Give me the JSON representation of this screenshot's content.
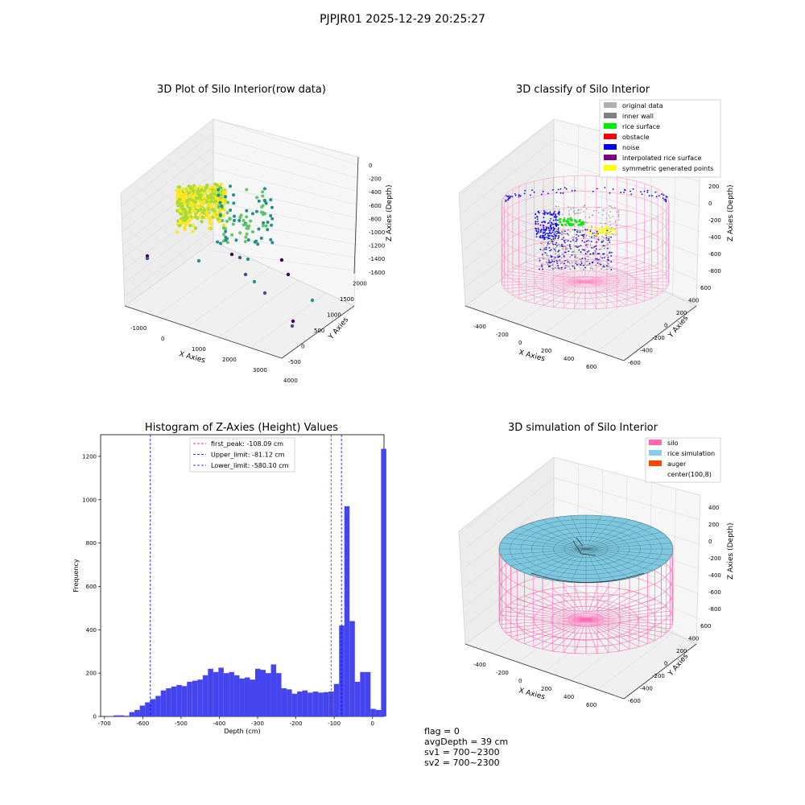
{
  "figure": {
    "suptitle": "PJPJR01 2025-12-29 20:25:27"
  },
  "chart_data": [
    {
      "type": "scatter",
      "title": "3D Plot of Silo Interior(row data)",
      "xlabel": "X Axies",
      "ylabel": "Y Axies",
      "zlabel": "Z Axies (Depth)",
      "x_ticks": [
        "-1000",
        "0",
        "1000",
        "2000",
        "3000",
        "4000"
      ],
      "y_ticks": [
        "-500",
        "0",
        "500",
        "1000",
        "1500",
        "2000"
      ],
      "z_ticks": [
        "0",
        "-200",
        "-400",
        "-600",
        "-800",
        "-1000",
        "-1200",
        "-1400",
        "-1600"
      ],
      "colormap": "viridis",
      "description_points": "dense rice-surface cluster with sparse outliers"
    },
    {
      "type": "scatter",
      "title": "3D classify of Silo Interior",
      "xlabel": "X Axies",
      "ylabel": "Y Axies",
      "zlabel": "Z Axies (Depth)",
      "x_ticks": [
        "-400",
        "-200",
        "0",
        "200",
        "400",
        "600"
      ],
      "y_ticks": [
        "-600",
        "-400",
        "-200",
        "0",
        "200",
        "400",
        "600"
      ],
      "z_ticks": [
        "400",
        "200",
        "0",
        "-200",
        "-400",
        "-600",
        "-800"
      ],
      "legend_position": "top-right",
      "legend": [
        {
          "label": "original data",
          "color": "#b0b0b0"
        },
        {
          "label": "inner wall",
          "color": "#808080"
        },
        {
          "label": "rice surface",
          "color": "#00ee00"
        },
        {
          "label": "obstacle",
          "color": "#ff0000"
        },
        {
          "label": "noise",
          "color": "#0000ee"
        },
        {
          "label": "interpolated rice surface",
          "color": "#800080"
        },
        {
          "label": "symmetric generated points",
          "color": "#ffff00"
        }
      ]
    },
    {
      "type": "bar",
      "title": "Histogram of Z-Axies (Height) Values",
      "xlabel": "Depth (cm)",
      "ylabel": "Frequency",
      "xlim": [
        -710,
        30
      ],
      "ylim": [
        0,
        1300
      ],
      "x_ticks": [
        -700,
        -600,
        -500,
        -400,
        -300,
        -200,
        -100,
        0
      ],
      "y_ticks": [
        0,
        200,
        400,
        600,
        800,
        1000,
        1200
      ],
      "bar_color": "#4545f0",
      "bin_start": -690,
      "bin_width": 13.7,
      "values": [
        2,
        5,
        5,
        3,
        20,
        30,
        50,
        65,
        80,
        95,
        120,
        130,
        138,
        145,
        140,
        160,
        165,
        170,
        190,
        220,
        205,
        225,
        200,
        205,
        190,
        175,
        180,
        170,
        220,
        215,
        200,
        240,
        200,
        130,
        125,
        105,
        115,
        120,
        110,
        115,
        110,
        112,
        115,
        150,
        420,
        970,
        440,
        160,
        205,
        205,
        35,
        30,
        1235
      ],
      "vlines": [
        {
          "x": -108.09,
          "color": "#ff0000",
          "label": "first_peak: -108.09 cm"
        },
        {
          "x": -81.12,
          "color": "#0000ff",
          "label": "Upper_limit: -81.12 cm"
        },
        {
          "x": -580.1,
          "color": "#0000ff",
          "label": "Lower_limit: -580.10 cm"
        }
      ],
      "legend_position": "top-center"
    },
    {
      "type": "surface",
      "title": "3D simulation of Silo Interior",
      "xlabel": "X Axies",
      "ylabel": "Y Axies",
      "zlabel": "Z Axies (Depth)",
      "x_ticks": [
        "-400",
        "-200",
        "0",
        "200",
        "400",
        "600"
      ],
      "y_ticks": [
        "-600",
        "-400",
        "-200",
        "0",
        "200",
        "400",
        "600"
      ],
      "z_ticks": [
        "400",
        "200",
        "0",
        "-200",
        "-400",
        "-600",
        "-800"
      ],
      "legend_position": "top-right",
      "legend": [
        {
          "label": "silo",
          "color": "#ff69b4"
        },
        {
          "label": "rice simulation",
          "color": "#87ceeb"
        },
        {
          "label": "auger",
          "color": "#ff4500"
        },
        {
          "label": "center(100,8)",
          "color": ""
        }
      ]
    }
  ],
  "footer": {
    "flag": "flag = 0",
    "avg_depth": "avgDepth = 39 cm",
    "sv1": "sv1 = 700~2300",
    "sv2": "sv2 = 700~2300"
  }
}
